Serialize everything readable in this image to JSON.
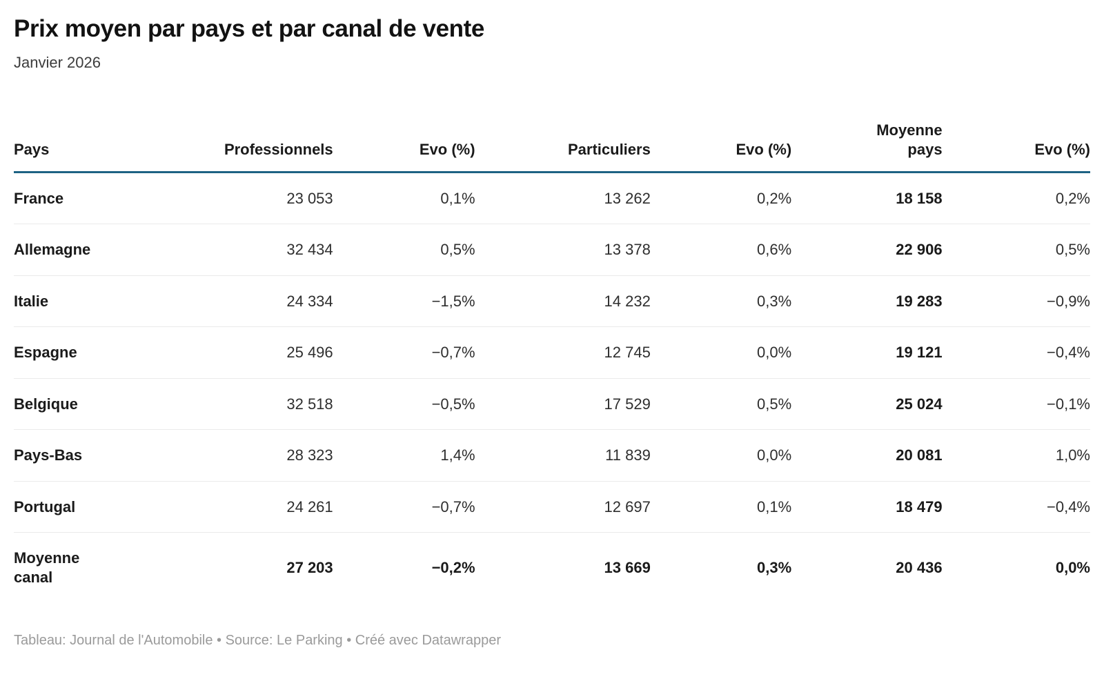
{
  "header": {
    "title": "Prix moyen par pays et par canal de vente",
    "subtitle": "Janvier 2026"
  },
  "table": {
    "columns": [
      {
        "key": "pays",
        "label": "Pays",
        "align": "left"
      },
      {
        "key": "professionnels",
        "label": "Professionnels",
        "align": "right"
      },
      {
        "key": "evo_pro",
        "label": "Evo (%)",
        "align": "right"
      },
      {
        "key": "particuliers",
        "label": "Particuliers",
        "align": "right"
      },
      {
        "key": "evo_part",
        "label": "Evo (%)",
        "align": "right"
      },
      {
        "key": "moyenne_pays",
        "label": "Moyenne pays",
        "align": "right"
      },
      {
        "key": "evo_moyenne",
        "label": "Evo (%)",
        "align": "right"
      }
    ],
    "rows": [
      {
        "label": "France",
        "summary": false,
        "cells": [
          "23 053",
          "0,1%",
          "13 262",
          "0,2%",
          "18 158",
          "0,2%"
        ]
      },
      {
        "label": "Allemagne",
        "summary": false,
        "cells": [
          "32 434",
          "0,5%",
          "13 378",
          "0,6%",
          "22 906",
          "0,5%"
        ]
      },
      {
        "label": "Italie",
        "summary": false,
        "cells": [
          "24 334",
          "−1,5%",
          "14 232",
          "0,3%",
          "19 283",
          "−0,9%"
        ]
      },
      {
        "label": "Espagne",
        "summary": false,
        "cells": [
          "25 496",
          "−0,7%",
          "12 745",
          "0,0%",
          "19 121",
          "−0,4%"
        ]
      },
      {
        "label": "Belgique",
        "summary": false,
        "cells": [
          "32 518",
          "−0,5%",
          "17 529",
          "0,5%",
          "25 024",
          "−0,1%"
        ]
      },
      {
        "label": "Pays-Bas",
        "summary": false,
        "cells": [
          "28 323",
          "1,4%",
          "11 839",
          "0,0%",
          "20 081",
          "1,0%"
        ]
      },
      {
        "label": "Portugal",
        "summary": false,
        "cells": [
          "24 261",
          "−0,7%",
          "12 697",
          "0,1%",
          "18 479",
          "−0,4%"
        ]
      },
      {
        "label": "Moyenne canal",
        "summary": true,
        "cells": [
          "27 203",
          "−0,2%",
          "13 669",
          "0,3%",
          "20 436",
          "0,0%"
        ]
      }
    ]
  },
  "footer": {
    "text": "Tableau: Journal de l'Automobile • Source: Le Parking • Créé avec Datawrapper"
  },
  "colors": {
    "header_rule": "#1d6283",
    "row_separator": "#eaeaea",
    "text_primary": "#1a1a1a",
    "text_secondary": "#2e2e2e",
    "footer_gray": "#9a9a9a"
  },
  "chart_data": {
    "type": "table",
    "title": "Prix moyen par pays et par canal de vente",
    "subtitle": "Janvier 2026",
    "columns": [
      "Pays",
      "Professionnels",
      "Evo (%)",
      "Particuliers",
      "Evo (%)",
      "Moyenne pays",
      "Evo (%)"
    ],
    "rows": [
      [
        "France",
        23053,
        0.1,
        13262,
        0.2,
        18158,
        0.2
      ],
      [
        "Allemagne",
        32434,
        0.5,
        13378,
        0.6,
        22906,
        0.5
      ],
      [
        "Italie",
        24334,
        -1.5,
        14232,
        0.3,
        19283,
        -0.9
      ],
      [
        "Espagne",
        25496,
        -0.7,
        12745,
        0.0,
        19121,
        -0.4
      ],
      [
        "Belgique",
        32518,
        -0.5,
        17529,
        0.5,
        25024,
        -0.1
      ],
      [
        "Pays-Bas",
        28323,
        1.4,
        11839,
        0.0,
        20081,
        1.0
      ],
      [
        "Portugal",
        24261,
        -0.7,
        12697,
        0.1,
        18479,
        -0.4
      ],
      [
        "Moyenne canal",
        27203,
        -0.2,
        13669,
        0.3,
        20436,
        0.0
      ]
    ],
    "notes": "Values are average prices; Evo (%) columns are month-over-month evolution. Country average column rendered bold; summary row 'Moyenne canal' rendered bold."
  }
}
